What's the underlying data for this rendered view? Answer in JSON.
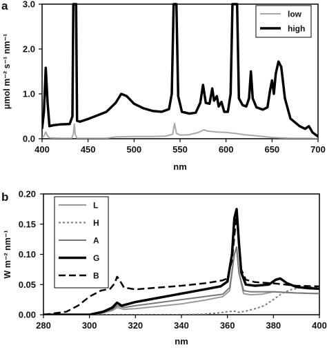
{
  "chart_data": [
    {
      "panel_label": "a",
      "type": "line",
      "xlabel": "nm",
      "ylabel": "μmol m⁻² s⁻¹ nm⁻¹",
      "xlim": [
        400,
        700
      ],
      "ylim": [
        0,
        3.0
      ],
      "x_ticks": [
        400,
        450,
        500,
        550,
        600,
        650,
        700
      ],
      "y_ticks": [
        0.0,
        1.0,
        2.0,
        3.0
      ],
      "x_tick_labels": [
        "400",
        "450",
        "500",
        "550",
        "600",
        "650",
        "700"
      ],
      "y_tick_labels": [
        "0.0",
        "1.0",
        "2.0",
        "3.0"
      ],
      "grid": false,
      "legend_position": "top-right",
      "series": [
        {
          "name": "low",
          "color": "#a8a8a8",
          "style": "solid-thin",
          "points": [
            [
              400,
              0.02
            ],
            [
              402,
              0.06
            ],
            [
              404,
              0.15
            ],
            [
              406,
              0.06
            ],
            [
              408,
              0.02
            ],
            [
              420,
              0.01
            ],
            [
              432,
              0.01
            ],
            [
              434,
              0.1
            ],
            [
              435,
              0.33
            ],
            [
              436,
              0.1
            ],
            [
              438,
              0.01
            ],
            [
              470,
              0.01
            ],
            [
              480,
              0.04
            ],
            [
              500,
              0.05
            ],
            [
              520,
              0.05
            ],
            [
              535,
              0.06
            ],
            [
              542,
              0.1
            ],
            [
              544,
              0.34
            ],
            [
              546,
              0.12
            ],
            [
              550,
              0.08
            ],
            [
              560,
              0.09
            ],
            [
              570,
              0.14
            ],
            [
              576,
              0.2
            ],
            [
              580,
              0.17
            ],
            [
              590,
              0.15
            ],
            [
              600,
              0.14
            ],
            [
              610,
              0.12
            ],
            [
              620,
              0.09
            ],
            [
              630,
              0.07
            ],
            [
              640,
              0.05
            ],
            [
              650,
              0.03
            ],
            [
              660,
              0.02
            ],
            [
              670,
              0.01
            ],
            [
              690,
              0.01
            ],
            [
              700,
              0.0
            ]
          ]
        },
        {
          "name": "high",
          "color": "#000000",
          "style": "solid-thick",
          "points": [
            [
              400,
              0.22
            ],
            [
              402,
              0.6
            ],
            [
              404,
              1.58
            ],
            [
              406,
              0.8
            ],
            [
              408,
              0.28
            ],
            [
              412,
              0.3
            ],
            [
              420,
              0.32
            ],
            [
              430,
              0.33
            ],
            [
              433,
              0.5
            ],
            [
              434,
              3.0
            ],
            [
              437,
              3.0
            ],
            [
              438,
              0.4
            ],
            [
              441,
              0.38
            ],
            [
              450,
              0.44
            ],
            [
              460,
              0.52
            ],
            [
              470,
              0.6
            ],
            [
              480,
              0.8
            ],
            [
              486,
              1.0
            ],
            [
              492,
              0.95
            ],
            [
              500,
              0.78
            ],
            [
              510,
              0.68
            ],
            [
              520,
              0.62
            ],
            [
              530,
              0.6
            ],
            [
              538,
              0.66
            ],
            [
              541,
              1.0
            ],
            [
              543,
              3.0
            ],
            [
              546,
              3.0
            ],
            [
              548,
              0.95
            ],
            [
              552,
              0.6
            ],
            [
              560,
              0.56
            ],
            [
              567,
              0.58
            ],
            [
              572,
              0.8
            ],
            [
              575,
              1.2
            ],
            [
              578,
              0.8
            ],
            [
              582,
              0.78
            ],
            [
              585,
              1.12
            ],
            [
              587,
              0.85
            ],
            [
              590,
              0.95
            ],
            [
              592,
              0.72
            ],
            [
              595,
              0.82
            ],
            [
              598,
              0.6
            ],
            [
              602,
              0.6
            ],
            [
              605,
              1.0
            ],
            [
              607,
              3.0
            ],
            [
              612,
              3.0
            ],
            [
              614,
              0.9
            ],
            [
              618,
              0.75
            ],
            [
              622,
              0.72
            ],
            [
              625,
              0.9
            ],
            [
              627,
              1.5
            ],
            [
              629,
              0.9
            ],
            [
              633,
              0.7
            ],
            [
              640,
              0.65
            ],
            [
              645,
              0.7
            ],
            [
              648,
              1.1
            ],
            [
              650,
              1.3
            ],
            [
              652,
              1.0
            ],
            [
              654,
              1.45
            ],
            [
              657,
              1.72
            ],
            [
              660,
              1.6
            ],
            [
              664,
              0.9
            ],
            [
              670,
              0.45
            ],
            [
              680,
              0.28
            ],
            [
              686,
              0.22
            ],
            [
              690,
              0.28
            ],
            [
              694,
              0.14
            ],
            [
              700,
              0.05
            ]
          ]
        }
      ]
    },
    {
      "panel_label": "b",
      "type": "line",
      "xlabel": "nm",
      "ylabel": "W m⁻² nm⁻¹",
      "xlim": [
        280,
        400
      ],
      "ylim": [
        0,
        0.2
      ],
      "x_ticks": [
        280,
        300,
        320,
        340,
        360,
        380,
        400
      ],
      "y_ticks": [
        0.0,
        0.05,
        0.1,
        0.15,
        0.2
      ],
      "x_tick_labels": [
        "280",
        "300",
        "320",
        "340",
        "360",
        "380",
        "400"
      ],
      "y_tick_labels": [
        "0.00",
        "0.05",
        "0.10",
        "0.15",
        "0.20"
      ],
      "grid": false,
      "legend_position": "top-left",
      "series": [
        {
          "name": "L",
          "color": "#999999",
          "style": "solid",
          "points": [
            [
              280,
              0.0
            ],
            [
              300,
              0.0
            ],
            [
              305,
              0.002
            ],
            [
              310,
              0.007
            ],
            [
              312,
              0.012
            ],
            [
              315,
              0.009
            ],
            [
              320,
              0.01
            ],
            [
              330,
              0.014
            ],
            [
              340,
              0.018
            ],
            [
              350,
              0.024
            ],
            [
              358,
              0.03
            ],
            [
              361,
              0.04
            ],
            [
              363,
              0.1
            ],
            [
              364,
              0.112
            ],
            [
              365,
              0.07
            ],
            [
              367,
              0.035
            ],
            [
              370,
              0.033
            ],
            [
              375,
              0.034
            ],
            [
              380,
              0.038
            ],
            [
              385,
              0.037
            ],
            [
              390,
              0.036
            ],
            [
              400,
              0.035
            ]
          ]
        },
        {
          "name": "H",
          "color": "#777777",
          "style": "dotted",
          "points": [
            [
              280,
              0.0
            ],
            [
              340,
              0.0
            ],
            [
              350,
              0.001
            ],
            [
              356,
              0.003
            ],
            [
              360,
              0.005
            ],
            [
              363,
              0.006
            ],
            [
              365,
              0.004
            ],
            [
              368,
              0.006
            ],
            [
              372,
              0.01
            ],
            [
              376,
              0.015
            ],
            [
              380,
              0.025
            ],
            [
              384,
              0.036
            ],
            [
              388,
              0.042
            ],
            [
              392,
              0.045
            ],
            [
              400,
              0.046
            ]
          ]
        },
        {
          "name": "A",
          "color": "#777777",
          "style": "solid",
          "points": [
            [
              280,
              0.0
            ],
            [
              300,
              0.0
            ],
            [
              305,
              0.003
            ],
            [
              310,
              0.009
            ],
            [
              312,
              0.015
            ],
            [
              315,
              0.012
            ],
            [
              320,
              0.015
            ],
            [
              330,
              0.02
            ],
            [
              340,
              0.025
            ],
            [
              350,
              0.03
            ],
            [
              358,
              0.034
            ],
            [
              361,
              0.045
            ],
            [
              363,
              0.1
            ],
            [
              364,
              0.112
            ],
            [
              365,
              0.07
            ],
            [
              367,
              0.04
            ],
            [
              370,
              0.038
            ],
            [
              380,
              0.038
            ],
            [
              385,
              0.037
            ],
            [
              390,
              0.036
            ],
            [
              400,
              0.035
            ]
          ]
        },
        {
          "name": "G",
          "color": "#000000",
          "style": "solid-thick",
          "points": [
            [
              280,
              0.0
            ],
            [
              300,
              0.0
            ],
            [
              306,
              0.005
            ],
            [
              310,
              0.012
            ],
            [
              312,
              0.02
            ],
            [
              314,
              0.015
            ],
            [
              320,
              0.021
            ],
            [
              330,
              0.028
            ],
            [
              340,
              0.035
            ],
            [
              350,
              0.042
            ],
            [
              357,
              0.047
            ],
            [
              360,
              0.055
            ],
            [
              362,
              0.1
            ],
            [
              363,
              0.16
            ],
            [
              364,
              0.175
            ],
            [
              365,
              0.12
            ],
            [
              366,
              0.07
            ],
            [
              368,
              0.05
            ],
            [
              372,
              0.048
            ],
            [
              378,
              0.05
            ],
            [
              381,
              0.058
            ],
            [
              383,
              0.06
            ],
            [
              386,
              0.052
            ],
            [
              390,
              0.046
            ],
            [
              395,
              0.044
            ],
            [
              400,
              0.043
            ]
          ]
        },
        {
          "name": "B",
          "color": "#000000",
          "style": "dashed",
          "points": [
            [
              280,
              0.0
            ],
            [
              290,
              0.005
            ],
            [
              295,
              0.015
            ],
            [
              300,
              0.03
            ],
            [
              305,
              0.04
            ],
            [
              309,
              0.043
            ],
            [
              311,
              0.052
            ],
            [
              312,
              0.063
            ],
            [
              313,
              0.058
            ],
            [
              315,
              0.045
            ],
            [
              320,
              0.042
            ],
            [
              330,
              0.045
            ],
            [
              340,
              0.048
            ],
            [
              350,
              0.052
            ],
            [
              355,
              0.055
            ],
            [
              358,
              0.057
            ],
            [
              360,
              0.06
            ],
            [
              362,
              0.09
            ],
            [
              363,
              0.13
            ],
            [
              364,
              0.165
            ],
            [
              365,
              0.12
            ],
            [
              366,
              0.075
            ],
            [
              368,
              0.058
            ],
            [
              372,
              0.054
            ],
            [
              380,
              0.052
            ],
            [
              385,
              0.05
            ],
            [
              390,
              0.048
            ],
            [
              400,
              0.047
            ]
          ]
        }
      ]
    }
  ]
}
